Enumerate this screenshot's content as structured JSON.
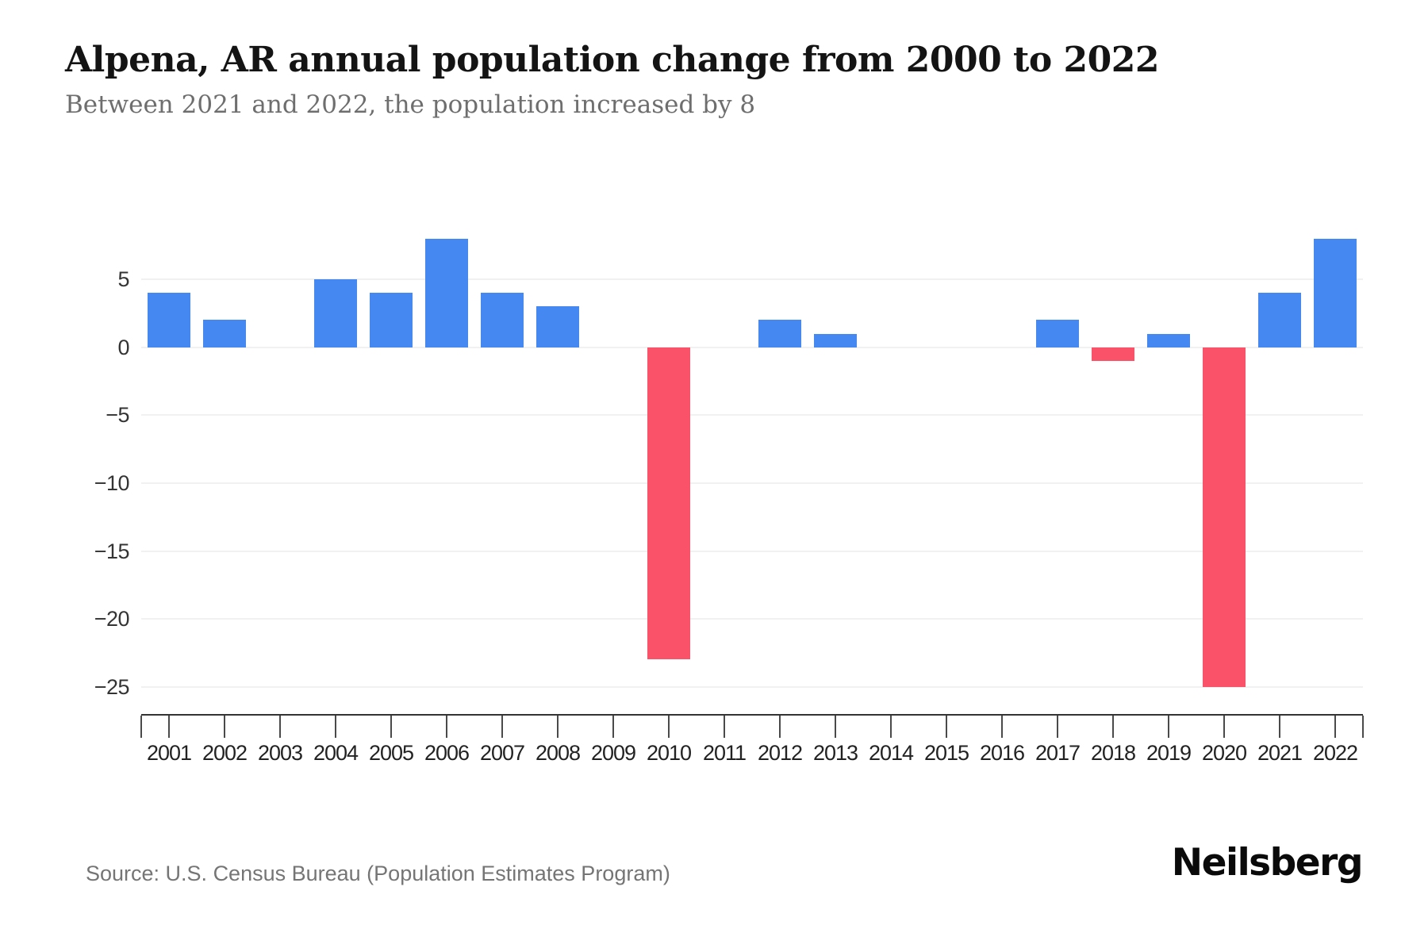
{
  "header": {
    "title": "Alpena, AR annual population change from 2000 to 2022",
    "subtitle": "Between 2021 and 2022, the population increased by 8"
  },
  "chart_data": {
    "type": "bar",
    "title": "Alpena, AR annual population change from 2000 to 2022",
    "subtitle": "Between 2021 and 2022, the population increased by 8",
    "categories": [
      "2001",
      "2002",
      "2003",
      "2004",
      "2005",
      "2006",
      "2007",
      "2008",
      "2009",
      "2010",
      "2011",
      "2012",
      "2013",
      "2014",
      "2015",
      "2016",
      "2017",
      "2018",
      "2019",
      "2020",
      "2021",
      "2022"
    ],
    "values": [
      4,
      2,
      0,
      5,
      4,
      8,
      4,
      3,
      0,
      -23,
      0,
      2,
      1,
      0,
      0,
      0,
      2,
      -1,
      1,
      -25,
      4,
      8
    ],
    "xlabel": "",
    "ylabel": "",
    "ylim": [
      -27,
      9.5
    ],
    "yticks": [
      5,
      0,
      -5,
      -10,
      -15,
      -20,
      -25
    ],
    "ytick_labels": [
      "5",
      "0",
      "−5",
      "−10",
      "−15",
      "−20",
      "−25"
    ],
    "grid": true,
    "legend": "none",
    "colors": {
      "positive": "#4688F1",
      "negative": "#FA5268"
    }
  },
  "footer": {
    "source": "Source: U.S. Census Bureau (Population Estimates Program)",
    "brand": "Neilsberg"
  }
}
